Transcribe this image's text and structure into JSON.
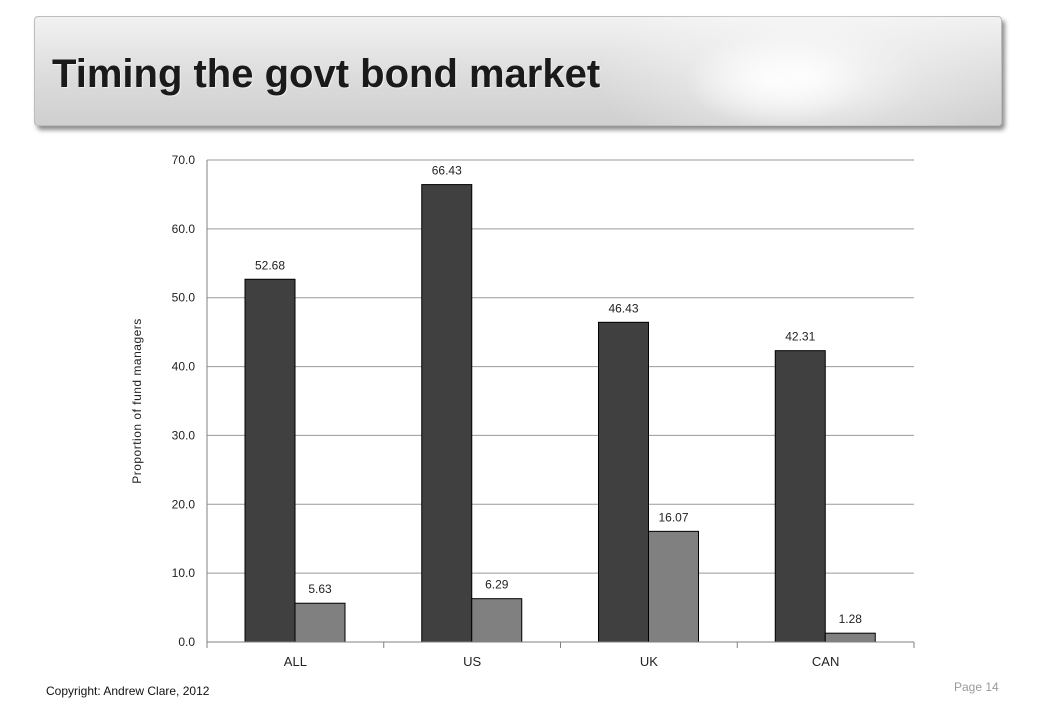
{
  "slide": {
    "title": "Timing the govt bond market",
    "copyright": "Copyright: Andrew Clare, 2012",
    "page_label": "Page 14"
  },
  "chart_data": {
    "type": "bar",
    "categories": [
      "ALL",
      "US",
      "UK",
      "CAN"
    ],
    "series": [
      {
        "values": [
          52.68,
          66.43,
          46.43,
          42.31
        ],
        "color": "#404040"
      },
      {
        "values": [
          5.63,
          6.29,
          16.07,
          1.28
        ],
        "color": "#808080"
      }
    ],
    "data_labels": [
      [
        "52.68",
        "66.43",
        "46.43",
        "42.31"
      ],
      [
        "5.63",
        "6.29",
        "16.07",
        "1.28"
      ]
    ],
    "ylabel": "Proportion of fund managers",
    "xlabel": "",
    "ylim": [
      0,
      70
    ],
    "yticks": [
      "0.0",
      "10.0",
      "20.0",
      "30.0",
      "40.0",
      "50.0",
      "60.0",
      "70.0"
    ],
    "grid": true,
    "legend": "none"
  }
}
